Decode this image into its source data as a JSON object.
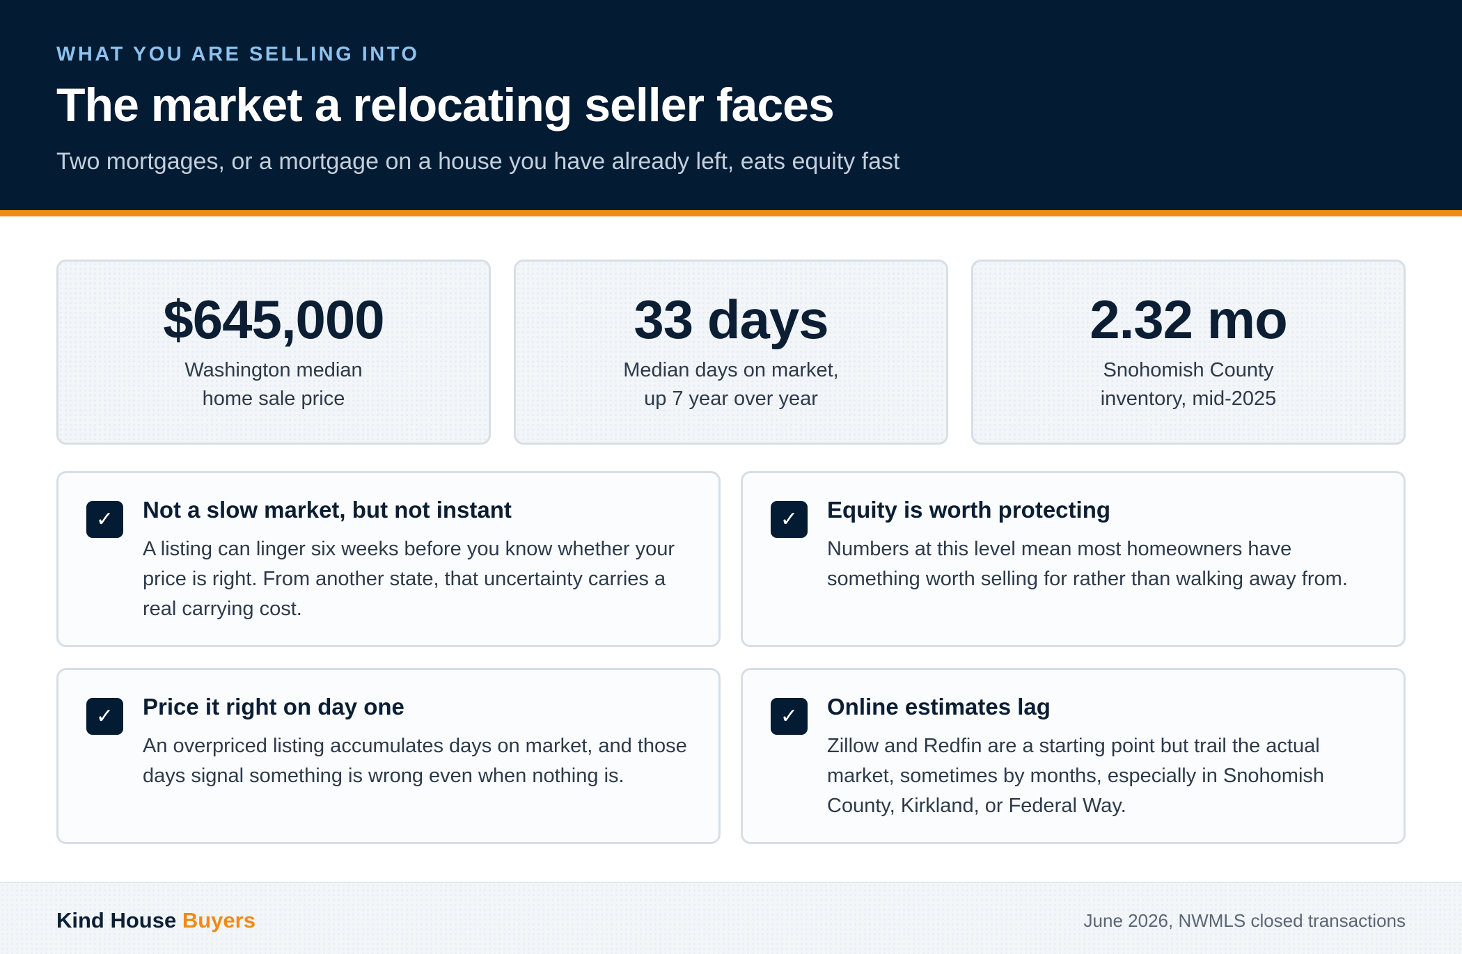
{
  "header": {
    "eyebrow": "WHAT YOU ARE SELLING INTO",
    "title": "The market a relocating seller faces",
    "subtitle": "Two mortgages, or a mortgage on a house you have already left, eats equity fast"
  },
  "stats": [
    {
      "value": "$645,000",
      "label_line1": "Washington median",
      "label_line2": "home sale price"
    },
    {
      "value": "33 days",
      "label_line1": "Median days on market,",
      "label_line2": "up 7 year over year"
    },
    {
      "value": "2.32 mo",
      "label_line1": "Snohomish County",
      "label_line2": "inventory, mid-2025"
    }
  ],
  "cards": [
    {
      "icon": "checkmark-icon",
      "check": "✓",
      "title": "Not a slow market, but not instant",
      "body": "A listing can linger six weeks before you know whether your price is right. From another state, that uncertainty carries a real carrying cost."
    },
    {
      "icon": "checkmark-icon",
      "check": "✓",
      "title": "Equity is worth protecting",
      "body": "Numbers at this level mean most homeowners have something worth selling for rather than walking away from."
    },
    {
      "icon": "checkmark-icon",
      "check": "✓",
      "title": "Price it right on day one",
      "body": "An overpriced listing accumulates days on market, and those days signal something is wrong even when nothing is."
    },
    {
      "icon": "checkmark-icon",
      "check": "✓",
      "title": "Online estimates lag",
      "body": "Zillow and Redfin are a starting point but trail the actual market, sometimes by months, especially in Snohomish County, Kirkland, or Federal Way."
    }
  ],
  "footer": {
    "brand_part1": "Kind House",
    "brand_part2": "Buyers",
    "source": "June 2026, NWMLS closed transactions"
  },
  "colors": {
    "navy": "#031b33",
    "accent_orange": "#f08a16",
    "eyebrow_blue": "#8dc2ee"
  }
}
